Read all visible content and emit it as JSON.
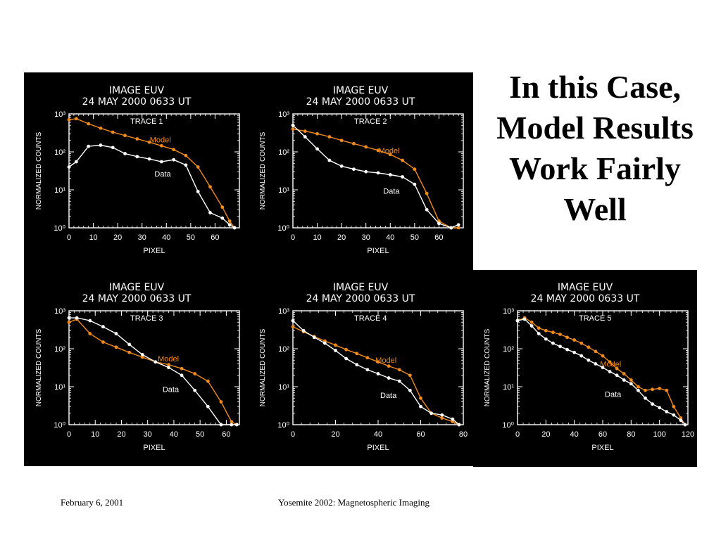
{
  "slide": {
    "title": "In this Case, Model Results Work Fairly Well",
    "footer_date": "February 6, 2001",
    "footer_event": "Yosemite 2002: Magnetospheric Imaging"
  },
  "colors": {
    "background": "#000000",
    "model": "#f08a1c",
    "data": "#ffffff"
  },
  "chart_data": [
    {
      "type": "line",
      "title": "IMAGE EUV",
      "subtitle": "24 MAY 2000   0633 UT",
      "trace_label": "TRACE 1",
      "xlabel": "PIXEL",
      "ylabel": "NORMALIZED COUNTS",
      "xlim": [
        0,
        70
      ],
      "xticks": [
        0,
        10,
        20,
        30,
        40,
        50,
        60
      ],
      "yscale": "log",
      "ylim": [
        1,
        1000
      ],
      "ytick_labels": [
        "10⁰",
        "10¹",
        "10²",
        "10³"
      ],
      "series": [
        {
          "name": "Model",
          "x": [
            0,
            3,
            8,
            13,
            18,
            23,
            28,
            33,
            38,
            43,
            48,
            53,
            58,
            63,
            66,
            68
          ],
          "y": [
            700,
            750,
            550,
            420,
            330,
            270,
            220,
            180,
            145,
            115,
            80,
            40,
            12,
            3.5,
            1.5,
            1
          ]
        },
        {
          "name": "Data",
          "x": [
            0,
            3,
            8,
            13,
            18,
            23,
            28,
            33,
            38,
            43,
            48,
            53,
            58,
            63,
            66,
            68
          ],
          "y": [
            40,
            55,
            140,
            150,
            130,
            90,
            75,
            65,
            55,
            62,
            45,
            9,
            2.5,
            1.8,
            1.2,
            1
          ]
        }
      ],
      "annotations": [
        "Model",
        "Data"
      ]
    },
    {
      "type": "line",
      "title": "IMAGE EUV",
      "subtitle": "24 MAY 2000   0633 UT",
      "trace_label": "TRACE 2",
      "xlabel": "PIXEL",
      "ylabel": "NORMALIZED COUNTS",
      "xlim": [
        0,
        70
      ],
      "xticks": [
        0,
        10,
        20,
        30,
        40,
        50,
        60
      ],
      "yscale": "log",
      "ylim": [
        1,
        1000
      ],
      "ytick_labels": [
        "10⁰",
        "10¹",
        "10²",
        "10³"
      ],
      "series": [
        {
          "name": "Model",
          "x": [
            0,
            5,
            10,
            15,
            20,
            25,
            30,
            35,
            40,
            45,
            50,
            55,
            60,
            65,
            68
          ],
          "y": [
            400,
            350,
            300,
            250,
            200,
            165,
            135,
            110,
            85,
            60,
            35,
            8,
            1.5,
            1,
            1
          ]
        },
        {
          "name": "Data",
          "x": [
            0,
            5,
            10,
            15,
            20,
            25,
            30,
            35,
            40,
            45,
            50,
            55,
            60,
            65,
            68
          ],
          "y": [
            500,
            250,
            120,
            60,
            42,
            35,
            30,
            28,
            25,
            22,
            14,
            3,
            1.3,
            1,
            1.2
          ]
        }
      ],
      "annotations": [
        "Model",
        "Data"
      ]
    },
    {
      "type": "line",
      "title": "IMAGE EUV",
      "subtitle": "24 MAY 2000   0633 UT",
      "trace_label": "TRACE 3",
      "xlabel": "PIXEL",
      "ylabel": "NORMALIZED COUNTS",
      "xlim": [
        0,
        65
      ],
      "xticks": [
        0,
        10,
        20,
        30,
        40,
        50,
        60
      ],
      "yscale": "log",
      "ylim": [
        1,
        1000
      ],
      "ytick_labels": [
        "10⁰",
        "10¹",
        "10²",
        "10³"
      ],
      "series": [
        {
          "name": "Model",
          "x": [
            0,
            3,
            8,
            13,
            18,
            23,
            28,
            33,
            38,
            43,
            48,
            53,
            58,
            62,
            64
          ],
          "y": [
            500,
            600,
            250,
            150,
            110,
            80,
            60,
            45,
            38,
            30,
            22,
            14,
            4,
            1.2,
            1
          ]
        },
        {
          "name": "Data",
          "x": [
            0,
            3,
            8,
            13,
            18,
            23,
            28,
            33,
            38,
            43,
            48,
            53,
            58,
            62,
            64
          ],
          "y": [
            650,
            650,
            550,
            380,
            250,
            130,
            70,
            45,
            32,
            20,
            8,
            3,
            1,
            1,
            1
          ]
        }
      ],
      "annotations": [
        "Model",
        "Data"
      ]
    },
    {
      "type": "line",
      "title": "IMAGE EUV",
      "subtitle": "24 MAY 2000   0633 UT",
      "trace_label": "TRACE 4",
      "xlabel": "PIXEL",
      "ylabel": "NORMALIZED COUNTS",
      "xlim": [
        0,
        80
      ],
      "xticks": [
        0,
        20,
        40,
        60,
        80
      ],
      "yscale": "log",
      "ylim": [
        1,
        1000
      ],
      "ytick_labels": [
        "10⁰",
        "10¹",
        "10²",
        "10³"
      ],
      "series": [
        {
          "name": "Model",
          "x": [
            0,
            5,
            10,
            15,
            20,
            25,
            30,
            35,
            40,
            45,
            50,
            55,
            60,
            65,
            70,
            75,
            78
          ],
          "y": [
            380,
            280,
            210,
            160,
            125,
            95,
            75,
            58,
            45,
            35,
            28,
            20,
            5,
            2,
            1.5,
            1.2,
            1
          ]
        },
        {
          "name": "Data",
          "x": [
            0,
            5,
            10,
            15,
            20,
            25,
            30,
            35,
            40,
            45,
            50,
            55,
            60,
            65,
            70,
            75,
            78
          ],
          "y": [
            550,
            300,
            200,
            140,
            90,
            55,
            38,
            28,
            22,
            17,
            14,
            8,
            3,
            2,
            1.8,
            1.4,
            1
          ]
        }
      ],
      "annotations": [
        "Model",
        "Data"
      ]
    },
    {
      "type": "line",
      "title": "IMAGE EUV",
      "subtitle": "24 MAY 2000   0633 UT",
      "trace_label": "TRACE 5",
      "xlabel": "PIXEL",
      "ylabel": "NORMALIZED COUNTS",
      "xlim": [
        0,
        120
      ],
      "xticks": [
        0,
        20,
        40,
        60,
        80,
        100,
        120
      ],
      "yscale": "log",
      "ylim": [
        1,
        1000
      ],
      "ytick_labels": [
        "10⁰",
        "10¹",
        "10²",
        "10³"
      ],
      "series": [
        {
          "name": "Model",
          "x": [
            0,
            5,
            10,
            15,
            20,
            25,
            30,
            35,
            40,
            45,
            50,
            55,
            60,
            65,
            70,
            75,
            80,
            85,
            90,
            95,
            100,
            105,
            110,
            115,
            118
          ],
          "y": [
            550,
            650,
            500,
            350,
            300,
            270,
            240,
            200,
            170,
            140,
            110,
            85,
            65,
            45,
            30,
            22,
            15,
            10,
            8,
            8.5,
            9,
            8,
            3,
            1.5,
            1
          ]
        },
        {
          "name": "Data",
          "x": [
            0,
            5,
            10,
            15,
            20,
            25,
            30,
            35,
            40,
            45,
            50,
            55,
            60,
            65,
            70,
            75,
            80,
            85,
            90,
            95,
            100,
            105,
            110,
            115,
            118
          ],
          "y": [
            550,
            600,
            400,
            250,
            180,
            140,
            115,
            95,
            80,
            65,
            50,
            40,
            32,
            25,
            20,
            15,
            12,
            8,
            5,
            3.5,
            2.8,
            2.2,
            1.8,
            1.3,
            1
          ]
        }
      ],
      "annotations": [
        "Model",
        "Data"
      ]
    }
  ]
}
